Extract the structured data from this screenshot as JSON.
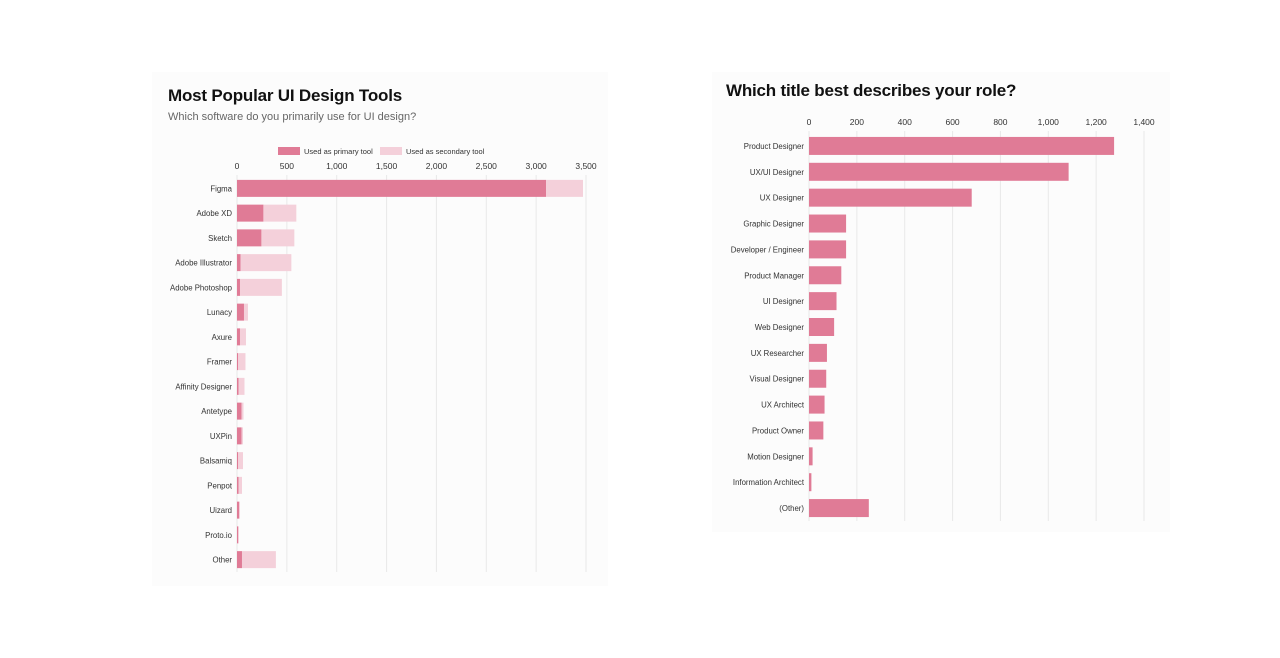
{
  "colors": {
    "primary": "#e07b96",
    "secondary": "#f4d0da",
    "grid": "#e9e9e9"
  },
  "left_panel": {
    "title": "Most Popular UI Design Tools",
    "subtitle": "Which software do you primarily use for UI design?"
  },
  "right_panel": {
    "title": "Which title best describes your role?"
  },
  "chart_data": [
    {
      "type": "bar",
      "orientation": "horizontal",
      "stacked": true,
      "title": "Most Popular UI Design Tools",
      "subtitle": "Which software do you primarily use for UI design?",
      "categories": [
        "Figma",
        "Adobe XD",
        "Sketch",
        "Adobe Illustrator",
        "Adobe Photoshop",
        "Lunacy",
        "Axure",
        "Framer",
        "Affinity Designer",
        "Antetype",
        "UXPin",
        "Balsamiq",
        "Penpot",
        "Uizard",
        "Proto.io",
        "Other"
      ],
      "series": [
        {
          "name": "Used as primary tool",
          "color": "#e07b96",
          "values": [
            3100,
            265,
            245,
            35,
            30,
            70,
            30,
            10,
            15,
            45,
            45,
            10,
            15,
            20,
            10,
            50
          ]
        },
        {
          "name": "Used as secondary tool",
          "color": "#f4d0da",
          "values": [
            370,
            330,
            330,
            510,
            420,
            40,
            60,
            75,
            60,
            20,
            15,
            50,
            35,
            10,
            10,
            340
          ]
        }
      ],
      "xticks": [
        0,
        500,
        1000,
        1500,
        2000,
        2500,
        3000,
        3500
      ],
      "xtick_labels": [
        "0",
        "500",
        "1,000",
        "1,500",
        "2,000",
        "2,500",
        "3,000",
        "3,500"
      ],
      "xlim": [
        0,
        3500
      ],
      "grid": true,
      "legend": "top"
    },
    {
      "type": "bar",
      "orientation": "horizontal",
      "title": "Which title best describes your role?",
      "categories": [
        "Product Designer",
        "UX/UI Designer",
        "UX Designer",
        "Graphic Designer",
        "Developer / Engineer",
        "Product Manager",
        "UI Designer",
        "Web Designer",
        "UX Researcher",
        "Visual Designer",
        "UX Architect",
        "Product Owner",
        "Motion Designer",
        "Information Architect",
        "(Other)"
      ],
      "series": [
        {
          "color": "#e07b96",
          "values": [
            1275,
            1085,
            680,
            155,
            155,
            135,
            115,
            105,
            75,
            72,
            65,
            60,
            15,
            10,
            250
          ]
        }
      ],
      "xticks": [
        0,
        200,
        400,
        600,
        800,
        1000,
        1200,
        1400
      ],
      "xtick_labels": [
        "0",
        "200",
        "400",
        "600",
        "800",
        "1,000",
        "1,200",
        "1,400"
      ],
      "xlim": [
        0,
        1400
      ],
      "grid": true
    }
  ]
}
